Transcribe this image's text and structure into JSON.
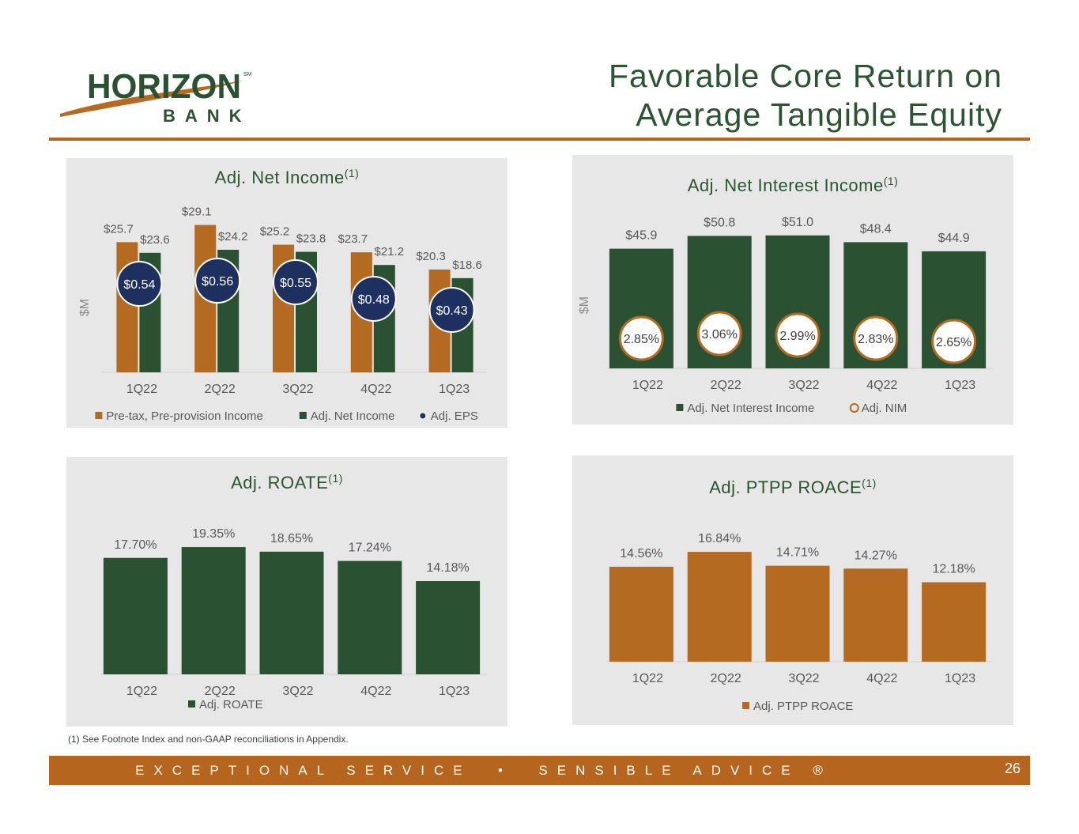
{
  "header": {
    "logo_text": "HORIZON",
    "logo_sub": "BANK",
    "logo_mark": "SM",
    "title_line1": "Favorable Core Return on",
    "title_line2": "Average Tangible Equity"
  },
  "colors": {
    "green": "#2a5232",
    "orange": "#b56a22",
    "navy": "#1e3060",
    "panel": "#e7e7e7",
    "text": "#595959",
    "title": "#2a5530"
  },
  "chart_data": [
    {
      "id": "net_income",
      "type": "bar",
      "title": "Adj. Net Income",
      "title_sup": "(1)",
      "ylabel": "$M",
      "categories": [
        "1Q22",
        "2Q22",
        "3Q22",
        "4Q22",
        "1Q23"
      ],
      "series": [
        {
          "name": "Pre-tax, Pre-provision Income",
          "values": [
            25.7,
            29.1,
            25.2,
            23.7,
            20.3
          ],
          "labels": [
            "$25.7",
            "$29.1",
            "$25.2",
            "$23.7",
            "$20.3"
          ],
          "color": "#b56a22"
        },
        {
          "name": "Adj. Net Income",
          "values": [
            23.6,
            24.2,
            23.8,
            21.2,
            18.6
          ],
          "labels": [
            "$23.6",
            "$24.2",
            "$23.8",
            "$21.2",
            "$18.6"
          ],
          "color": "#2a5232"
        }
      ],
      "markers": {
        "name": "Adj. EPS",
        "values": [
          0.54,
          0.56,
          0.55,
          0.48,
          0.43
        ],
        "labels": [
          "$0.54",
          "$0.56",
          "$0.55",
          "$0.48",
          "$0.43"
        ],
        "color": "#1e3060"
      },
      "ylim": [
        0,
        32
      ]
    },
    {
      "id": "nii",
      "type": "bar",
      "title": "Adj. Net Interest Income",
      "title_sup": "(1)",
      "ylabel": "$M",
      "categories": [
        "1Q22",
        "2Q22",
        "3Q22",
        "4Q22",
        "1Q23"
      ],
      "series": [
        {
          "name": "Adj. Net Interest Income",
          "values": [
            45.9,
            50.8,
            51.0,
            48.4,
            44.9
          ],
          "labels": [
            "$45.9",
            "$50.8",
            "$51.0",
            "$48.4",
            "$44.9"
          ],
          "color": "#2a5232"
        }
      ],
      "markers": {
        "name": "Adj. NIM",
        "values": [
          2.85,
          3.06,
          2.99,
          2.83,
          2.65
        ],
        "labels": [
          "2.85%",
          "3.06%",
          "2.99%",
          "2.83%",
          "2.65%"
        ],
        "color": "#b56a22"
      },
      "ylim": [
        0,
        57
      ]
    },
    {
      "id": "roate",
      "type": "bar",
      "title": "Adj. ROATE",
      "title_sup": "(1)",
      "categories": [
        "1Q22",
        "2Q22",
        "3Q22",
        "4Q22",
        "1Q23"
      ],
      "series": [
        {
          "name": "Adj. ROATE",
          "values": [
            17.7,
            19.35,
            18.65,
            17.24,
            14.18
          ],
          "labels": [
            "17.70%",
            "19.35%",
            "18.65%",
            "17.24%",
            "14.18%"
          ],
          "color": "#2a5232"
        }
      ],
      "ylim": [
        0,
        22
      ]
    },
    {
      "id": "ptpp",
      "type": "bar",
      "title": "Adj. PTPP ROACE",
      "title_sup": "(1)",
      "categories": [
        "1Q22",
        "2Q22",
        "3Q22",
        "4Q22",
        "1Q23"
      ],
      "series": [
        {
          "name": "Adj. PTPP ROACE",
          "values": [
            14.56,
            16.84,
            14.71,
            14.27,
            12.18
          ],
          "labels": [
            "14.56%",
            "16.84%",
            "14.71%",
            "14.27%",
            "12.18%"
          ],
          "color": "#b56a22"
        }
      ],
      "ylim": [
        0,
        20
      ]
    }
  ],
  "footnote": "(1) See Footnote Index and non-GAAP reconciliations in Appendix.",
  "footer": {
    "tagline": "EXCEPTIONAL SERVICE  •  SENSIBLE ADVICE ®",
    "page_number": "26"
  }
}
